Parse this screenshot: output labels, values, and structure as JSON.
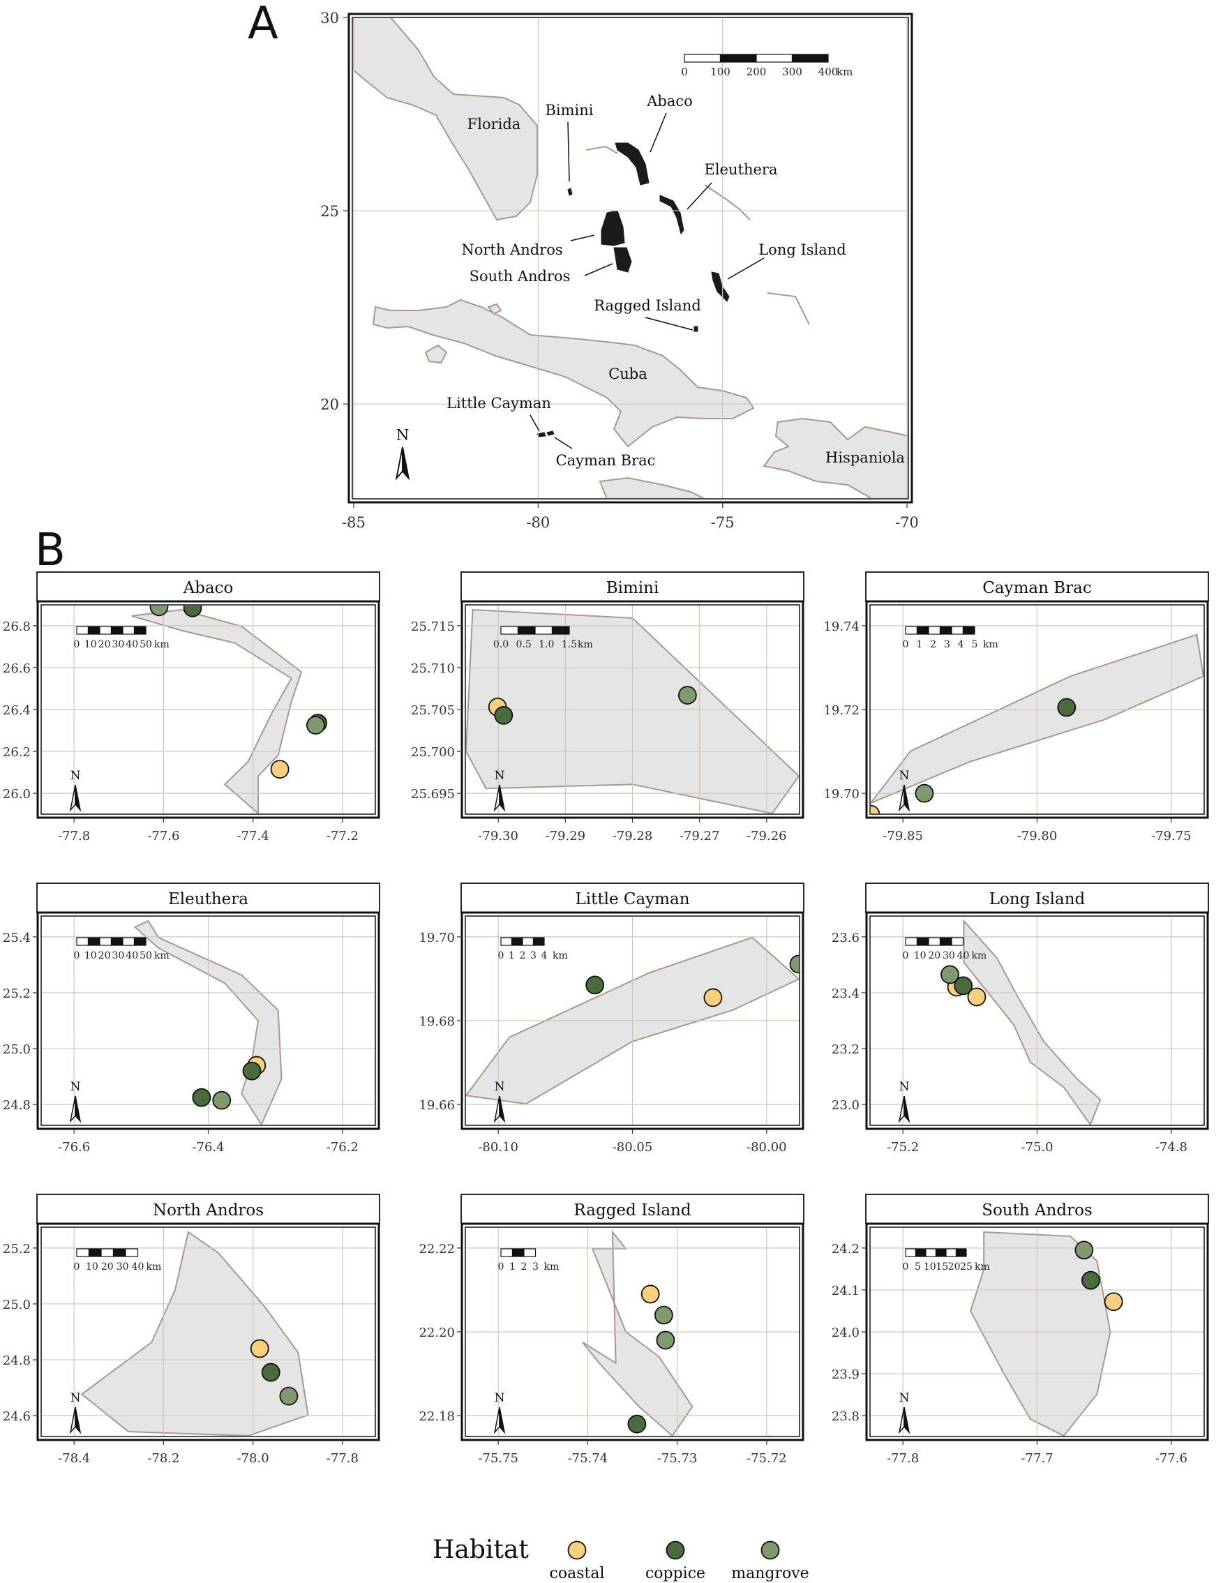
{
  "panel_labels": {
    "a": "A",
    "b": "B"
  },
  "colors": {
    "land": "#e5e5e5",
    "coast": "#a8998a",
    "grid": "#cfc6b8",
    "study_island": "#1e1a17",
    "coastal": "#f8cf7c",
    "coppice": "#4a6b3c",
    "mangrove": "#809a70",
    "strip_bg": "#ffffff"
  },
  "north_label": "N",
  "main_map": {
    "y_ticks": [
      "30",
      "25",
      "20"
    ],
    "x_ticks": [
      "-85",
      "-80",
      "-75",
      "-70"
    ],
    "xlim": [
      -85,
      -70
    ],
    "ylim": [
      18,
      30
    ],
    "scalebar": {
      "labels": [
        "0",
        "100",
        "200",
        "300",
        "400"
      ],
      "unit": "km"
    },
    "places": [
      "Florida",
      "Bimini",
      "Abaco",
      "Eleuthera",
      "North Andros",
      "South Andros",
      "Long Island",
      "Ragged Island",
      "Cuba",
      "Little Cayman",
      "Cayman Brac",
      "Hispaniola"
    ]
  },
  "facets": [
    {
      "name": "Abaco",
      "y_ticks": [
        "26.8",
        "26.6",
        "26.4",
        "26.2",
        "26.0"
      ],
      "x_ticks": [
        "-77.8",
        "-77.6",
        "-77.4",
        "-77.2"
      ],
      "scalebar": {
        "labels": [
          "0",
          "10",
          "20",
          "30",
          "40",
          "50"
        ],
        "unit": "km"
      },
      "points": [
        {
          "lon": -77.61,
          "lat": 26.89,
          "habitat": "mangrove"
        },
        {
          "lon": -77.535,
          "lat": 26.885,
          "habitat": "coppice"
        },
        {
          "lon": -77.255,
          "lat": 26.335,
          "habitat": "coppice"
        },
        {
          "lon": -77.26,
          "lat": 26.325,
          "habitat": "mangrove"
        },
        {
          "lon": -77.34,
          "lat": 26.115,
          "habitat": "coastal"
        }
      ]
    },
    {
      "name": "Bimini",
      "y_ticks": [
        "25.715",
        "25.710",
        "25.705",
        "25.700",
        "25.695"
      ],
      "x_ticks": [
        "-79.30",
        "-79.29",
        "-79.28",
        "-79.27",
        "-79.26"
      ],
      "scalebar": {
        "labels": [
          "0.0",
          "0.5",
          "1.0",
          "1.5"
        ],
        "unit": "km"
      },
      "points": [
        {
          "lon": -79.3001,
          "lat": 25.7053,
          "habitat": "coastal"
        },
        {
          "lon": -79.2992,
          "lat": 25.7043,
          "habitat": "coppice"
        },
        {
          "lon": -79.2718,
          "lat": 25.7067,
          "habitat": "mangrove"
        }
      ]
    },
    {
      "name": "Cayman Brac",
      "y_ticks": [
        "19.74",
        "19.72",
        "19.70"
      ],
      "x_ticks": [
        "-79.85",
        "-79.80",
        "-79.75"
      ],
      "scalebar": {
        "labels": [
          "0",
          "1",
          "2",
          "3",
          "4",
          "5"
        ],
        "unit": "km"
      },
      "points": [
        {
          "lon": -79.862,
          "lat": 19.695,
          "habitat": "coastal"
        },
        {
          "lon": -79.842,
          "lat": 19.7,
          "habitat": "mangrove"
        },
        {
          "lon": -79.789,
          "lat": 19.7205,
          "habitat": "coppice"
        }
      ]
    },
    {
      "name": "Eleuthera",
      "y_ticks": [
        "25.4",
        "25.2",
        "25.0",
        "24.8"
      ],
      "x_ticks": [
        "-76.6",
        "-76.4",
        "-76.2"
      ],
      "scalebar": {
        "labels": [
          "0",
          "10",
          "20",
          "30",
          "40",
          "50"
        ],
        "unit": "km"
      },
      "points": [
        {
          "lon": -76.328,
          "lat": 24.94,
          "habitat": "coastal"
        },
        {
          "lon": -76.335,
          "lat": 24.92,
          "habitat": "coppice"
        },
        {
          "lon": -76.41,
          "lat": 24.825,
          "habitat": "coppice"
        },
        {
          "lon": -76.38,
          "lat": 24.815,
          "habitat": "mangrove"
        }
      ]
    },
    {
      "name": "Little Cayman",
      "y_ticks": [
        "19.70",
        "19.68",
        "19.66"
      ],
      "x_ticks": [
        "-80.10",
        "-80.05",
        "-80.00"
      ],
      "scalebar": {
        "labels": [
          "0",
          "1",
          "2",
          "3",
          "4"
        ],
        "unit": "km"
      },
      "points": [
        {
          "lon": -80.064,
          "lat": 19.6885,
          "habitat": "coppice"
        },
        {
          "lon": -80.02,
          "lat": 19.6855,
          "habitat": "coastal"
        },
        {
          "lon": -79.988,
          "lat": 19.6935,
          "habitat": "mangrove"
        }
      ]
    },
    {
      "name": "Long Island",
      "y_ticks": [
        "23.6",
        "23.4",
        "23.2",
        "23.0"
      ],
      "x_ticks": [
        "-75.2",
        "-75.0",
        "-74.8"
      ],
      "scalebar": {
        "labels": [
          "0",
          "10",
          "20",
          "30",
          "40"
        ],
        "unit": "km"
      },
      "points": [
        {
          "lon": -75.12,
          "lat": 23.42,
          "habitat": "coastal"
        },
        {
          "lon": -75.09,
          "lat": 23.385,
          "habitat": "coastal"
        },
        {
          "lon": -75.11,
          "lat": 23.425,
          "habitat": "coppice"
        },
        {
          "lon": -75.13,
          "lat": 23.465,
          "habitat": "mangrove"
        }
      ]
    },
    {
      "name": "North Andros",
      "y_ticks": [
        "25.2",
        "25.0",
        "24.8",
        "24.6"
      ],
      "x_ticks": [
        "-78.4",
        "-78.2",
        "-78.0",
        "-77.8"
      ],
      "scalebar": {
        "labels": [
          "0",
          "10",
          "20",
          "30",
          "40"
        ],
        "unit": "km"
      },
      "points": [
        {
          "lon": -77.985,
          "lat": 24.84,
          "habitat": "coastal"
        },
        {
          "lon": -77.96,
          "lat": 24.755,
          "habitat": "coppice"
        },
        {
          "lon": -77.92,
          "lat": 24.67,
          "habitat": "mangrove"
        }
      ]
    },
    {
      "name": "Ragged Island",
      "y_ticks": [
        "22.22",
        "22.20",
        "22.18"
      ],
      "x_ticks": [
        "-75.75",
        "-75.74",
        "-75.73",
        "-75.72"
      ],
      "scalebar": {
        "labels": [
          "0",
          "1",
          "2",
          "3"
        ],
        "unit": "km"
      },
      "points": [
        {
          "lon": -75.733,
          "lat": 22.209,
          "habitat": "coastal"
        },
        {
          "lon": -75.7315,
          "lat": 22.204,
          "habitat": "mangrove"
        },
        {
          "lon": -75.7313,
          "lat": 22.198,
          "habitat": "mangrove"
        },
        {
          "lon": -75.7345,
          "lat": 22.178,
          "habitat": "coppice"
        }
      ]
    },
    {
      "name": "South Andros",
      "y_ticks": [
        "24.2",
        "24.1",
        "24.0",
        "23.9",
        "23.8"
      ],
      "x_ticks": [
        "-77.8",
        "-77.7",
        "-77.6"
      ],
      "scalebar": {
        "labels": [
          "0",
          "5",
          "10",
          "15",
          "20",
          "25"
        ],
        "unit": "km"
      },
      "points": [
        {
          "lon": -77.665,
          "lat": 24.195,
          "habitat": "mangrove"
        },
        {
          "lon": -77.66,
          "lat": 24.123,
          "habitat": "coppice"
        },
        {
          "lon": -77.643,
          "lat": 24.072,
          "habitat": "coastal"
        }
      ]
    }
  ],
  "legend": {
    "title": "Habitat",
    "items": [
      "coastal",
      "coppice",
      "mangrove"
    ]
  }
}
